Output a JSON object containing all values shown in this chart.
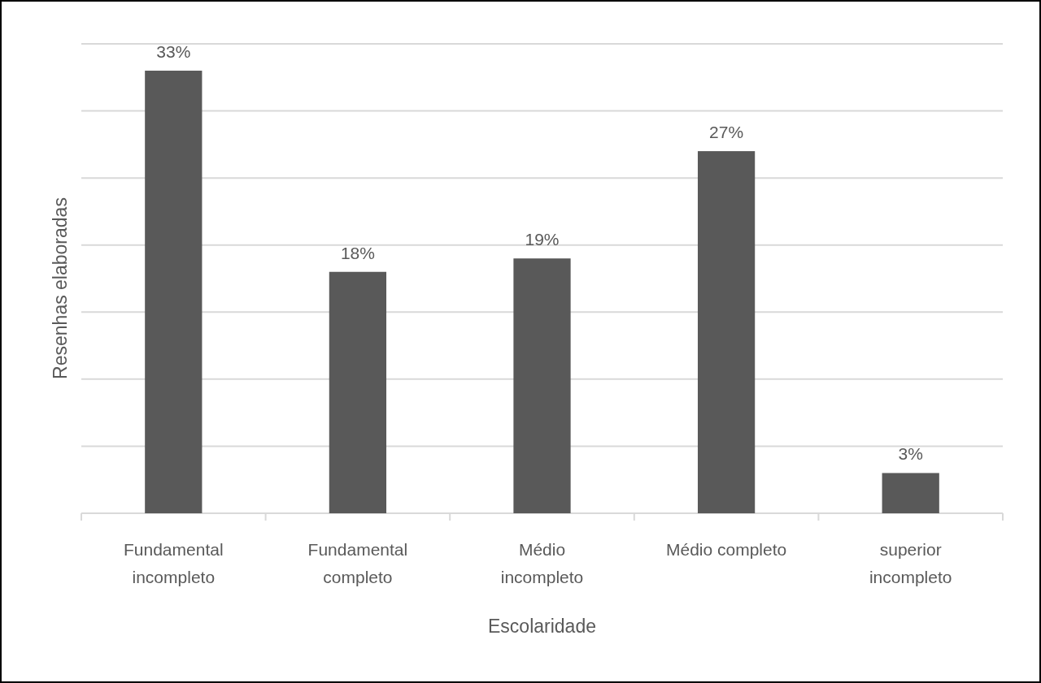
{
  "chart_data": {
    "type": "bar",
    "xlabel": "Escolaridade",
    "ylabel": "Resenhas elaboradas",
    "categories": [
      "Fundamental incompleto",
      "Fundamental completo",
      "Médio incompleto",
      "Médio completo",
      "superior incompleto"
    ],
    "values": [
      33,
      18,
      19,
      27,
      3
    ],
    "value_labels": [
      "33%",
      "18%",
      "19%",
      "27%",
      "3%"
    ],
    "color": "#595959",
    "ylim": [
      0,
      35
    ],
    "yticks": [
      {
        "value": 0,
        "label": null
      },
      {
        "value": 5,
        "label": null
      },
      {
        "value": 10,
        "label": null
      },
      {
        "value": 15,
        "label": null
      },
      {
        "value": 20,
        "label": null
      },
      {
        "value": 25,
        "label": null
      },
      {
        "value": 30,
        "label": null
      },
      {
        "value": 35,
        "label": null
      }
    ],
    "tick_labels": "x",
    "grid": "y"
  }
}
